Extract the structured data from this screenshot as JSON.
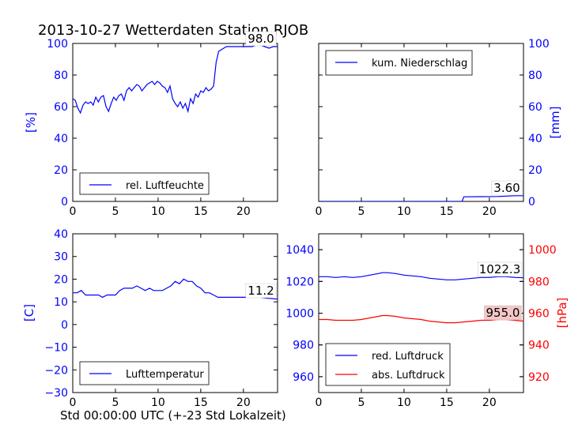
{
  "title": "2013-10-27 Wetterdaten Station RJOB",
  "xlabel": "Std 00:00:00 UTC (+-23 Std Lokalzeit)",
  "colors": {
    "blue": "#0000ff",
    "red": "#ff0000",
    "black": "#000000",
    "box_fill": "#ffffff",
    "red_box_fill": "#f4c7c7"
  },
  "chart_data": [
    {
      "type": "line",
      "panel": "top-left",
      "ylabel": "[%]",
      "xlim": [
        0,
        24
      ],
      "ylim": [
        0,
        100
      ],
      "xticks": [
        "0",
        "5",
        "10",
        "15",
        "20"
      ],
      "yticks": [
        "0",
        "20",
        "40",
        "60",
        "80",
        "100"
      ],
      "legend": {
        "placement": "lower-left",
        "entries": [
          "rel. Luftfeuchte"
        ]
      },
      "annotation": "98.0",
      "series": [
        {
          "name": "rel. Luftfeuchte",
          "color": "#0000ff",
          "x": [
            0,
            0.3,
            0.6,
            0.9,
            1.2,
            1.5,
            1.8,
            2.1,
            2.4,
            2.7,
            3.0,
            3.3,
            3.6,
            3.9,
            4.2,
            4.5,
            4.8,
            5.1,
            5.4,
            5.7,
            6.0,
            6.3,
            6.6,
            6.9,
            7.2,
            7.5,
            7.8,
            8.1,
            8.4,
            8.7,
            9.0,
            9.3,
            9.6,
            9.9,
            10.2,
            10.5,
            10.8,
            11.1,
            11.4,
            11.7,
            12.0,
            12.3,
            12.6,
            12.9,
            13.2,
            13.5,
            13.8,
            14.1,
            14.4,
            14.7,
            15.0,
            15.3,
            15.6,
            15.9,
            16.2,
            16.5,
            16.8,
            17.1,
            17.4,
            17.7,
            18.0,
            18.5,
            19.0,
            19.5,
            20.0,
            20.5,
            21.0,
            21.5,
            22.0,
            22.5,
            23.0,
            23.5,
            24.0
          ],
          "y": [
            65,
            64,
            59,
            56,
            61,
            63,
            62,
            63,
            61,
            66,
            63,
            66,
            67,
            60,
            57,
            62,
            66,
            64,
            67,
            68,
            64,
            70,
            72,
            70,
            72,
            74,
            73,
            70,
            72,
            74,
            75,
            76,
            74,
            76,
            75,
            73,
            72,
            69,
            73,
            65,
            62,
            60,
            63,
            59,
            62,
            57,
            65,
            62,
            68,
            66,
            70,
            69,
            72,
            70,
            71,
            73,
            88,
            95,
            96,
            97,
            98,
            98,
            98,
            98,
            98,
            98,
            98,
            99,
            99,
            98,
            97,
            98,
            98
          ]
        }
      ]
    },
    {
      "type": "line",
      "panel": "top-right",
      "ylabel": "[mm]",
      "xlim": [
        0,
        24
      ],
      "ylim": [
        0,
        100
      ],
      "xticks": [
        "0",
        "5",
        "10",
        "15",
        "20"
      ],
      "yticks": [
        "0",
        "20",
        "40",
        "60",
        "80",
        "100"
      ],
      "legend": {
        "placement": "upper-left",
        "entries": [
          "kum. Niederschlag"
        ]
      },
      "annotation": "3.60",
      "series": [
        {
          "name": "kum. Niederschlag",
          "color": "#0000ff",
          "x": [
            0,
            16.8,
            17.0,
            19.0,
            21.0,
            23.0,
            24.0
          ],
          "y": [
            0,
            0,
            2.9,
            3.0,
            3.1,
            3.6,
            3.6
          ]
        }
      ]
    },
    {
      "type": "line",
      "panel": "bottom-left",
      "ylabel": "[C]",
      "xlim": [
        0,
        24
      ],
      "ylim": [
        -30,
        40
      ],
      "xticks": [
        "0",
        "5",
        "10",
        "15",
        "20"
      ],
      "yticks": [
        "−30",
        "−20",
        "−10",
        "0",
        "10",
        "20",
        "30",
        "40"
      ],
      "legend": {
        "placement": "lower-left",
        "entries": [
          "Lufttemperatur"
        ]
      },
      "annotation": "11.2",
      "series": [
        {
          "name": "Lufttemperatur",
          "color": "#0000ff",
          "x": [
            0,
            0.5,
            1.0,
            1.5,
            2.0,
            2.5,
            3.0,
            3.5,
            4.0,
            4.5,
            5.0,
            5.5,
            6.0,
            6.5,
            7.0,
            7.5,
            8.0,
            8.5,
            9.0,
            9.5,
            10.0,
            10.5,
            11.0,
            11.5,
            12.0,
            12.5,
            13.0,
            13.5,
            14.0,
            14.5,
            15.0,
            15.5,
            16.0,
            16.5,
            17.0,
            17.5,
            18.0,
            19.0,
            20.0,
            21.0,
            22.0,
            23.0,
            24.0
          ],
          "y": [
            14,
            14,
            15,
            13,
            13,
            13,
            13,
            12,
            13,
            13,
            13,
            15,
            16,
            16,
            16,
            17,
            16,
            15,
            16,
            15,
            15,
            15,
            16,
            17,
            19,
            18,
            20,
            19,
            19,
            17,
            16,
            14,
            14,
            13,
            12,
            12,
            12,
            12,
            12,
            12,
            12,
            11.5,
            11.2
          ]
        }
      ]
    },
    {
      "type": "line",
      "panel": "bottom-right",
      "ylabel": "[hPa]",
      "xlim": [
        0,
        24
      ],
      "ylim_left": [
        950,
        1050
      ],
      "ylim_right": [
        910,
        1010
      ],
      "xticks": [
        "0",
        "5",
        "10",
        "15",
        "20"
      ],
      "yticks_left": [
        "960",
        "980",
        "1000",
        "1020",
        "1040"
      ],
      "yticks_right": [
        "920",
        "940",
        "960",
        "980",
        "1000"
      ],
      "legend": {
        "placement": "lower-left",
        "entries": [
          "red. Luftdruck",
          "abs. Luftdruck"
        ]
      },
      "annotations": [
        "1022.3",
        "955.0"
      ],
      "series": [
        {
          "name": "red. Luftdruck",
          "color": "#0000ff",
          "axis": "left",
          "x": [
            0,
            1,
            2,
            3,
            4,
            5,
            6,
            7,
            7.5,
            8,
            9,
            10,
            11,
            12,
            13,
            14,
            15,
            16,
            17,
            18,
            19,
            20,
            21,
            22,
            23,
            24
          ],
          "y": [
            1023,
            1023,
            1022.5,
            1023,
            1022.5,
            1023,
            1024,
            1025,
            1025.5,
            1025.5,
            1025,
            1024,
            1023.5,
            1023,
            1022,
            1021.5,
            1021,
            1021,
            1021.5,
            1022,
            1022.5,
            1022.5,
            1023,
            1023,
            1022.5,
            1022.3
          ]
        },
        {
          "name": "abs. Luftdruck",
          "color": "#ff0000",
          "axis": "right",
          "x": [
            0,
            1,
            2,
            3,
            4,
            5,
            6,
            7,
            7.5,
            8,
            9,
            10,
            11,
            12,
            13,
            14,
            15,
            16,
            17,
            18,
            19,
            20,
            21,
            22,
            23,
            24
          ],
          "y": [
            956,
            956,
            955.5,
            955.5,
            955.5,
            956,
            957,
            958,
            958.5,
            958.5,
            958,
            957,
            956.5,
            956,
            955,
            954.5,
            954,
            954,
            954.5,
            955,
            955.5,
            955.5,
            956,
            956,
            955.5,
            955.0
          ]
        }
      ]
    }
  ]
}
